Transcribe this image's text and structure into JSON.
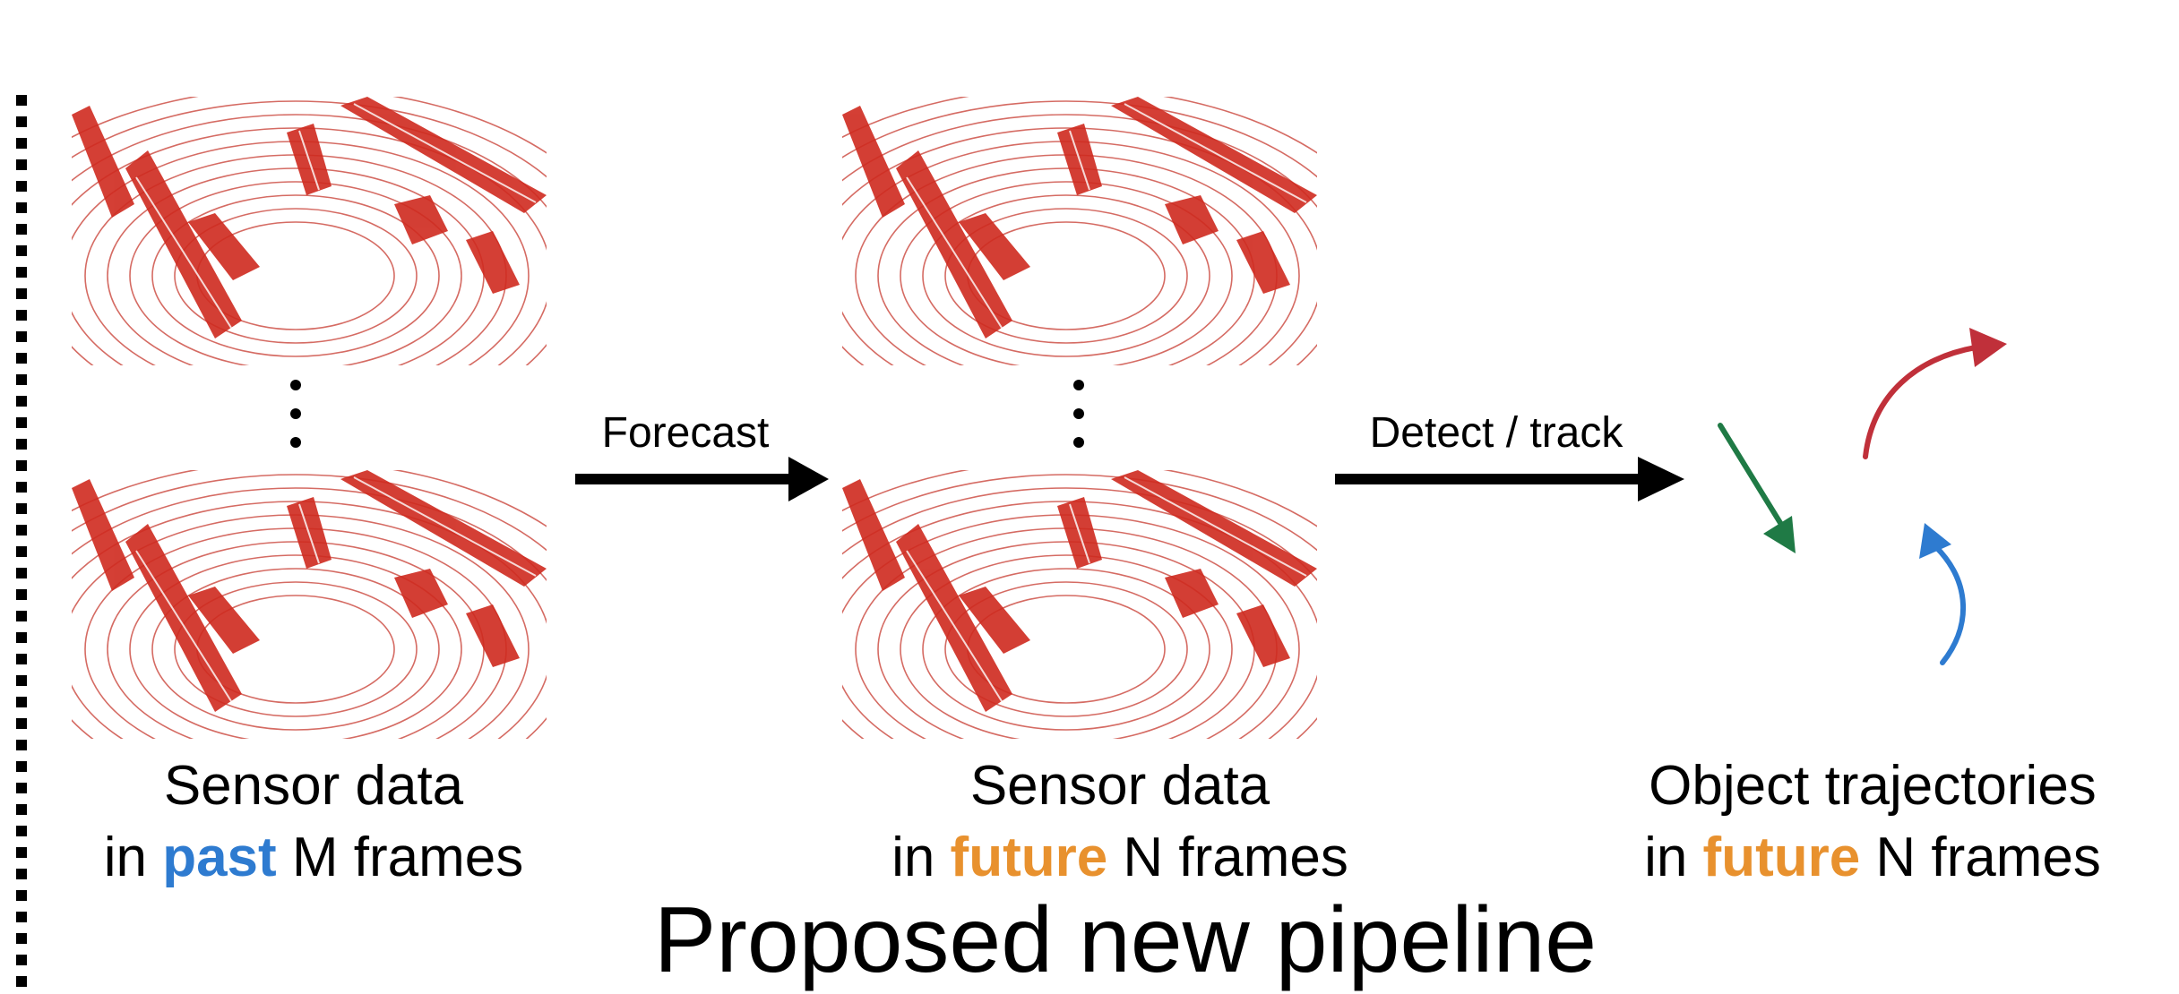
{
  "diagram": {
    "arrows": {
      "forecast": "Forecast",
      "detect_track": "Detect / track"
    },
    "blocks": {
      "past": {
        "line1": "Sensor data",
        "line2_prefix": "in ",
        "line2_highlight": "past",
        "line2_suffix": " M frames"
      },
      "future_sensor": {
        "line1": "Sensor data",
        "line2_prefix": "in ",
        "line2_highlight": "future",
        "line2_suffix": " N frames"
      },
      "trajectories": {
        "line1": "Object trajectories",
        "line2_prefix": "in ",
        "line2_highlight": "future",
        "line2_suffix": " N frames"
      }
    },
    "title": "Proposed new pipeline",
    "colors": {
      "past": "#2e7bd0",
      "future": "#e8912e",
      "lidar": "#cf2a1f",
      "traj_red": "#c0303a",
      "traj_green": "#1f7a45",
      "traj_blue": "#2e7bd0"
    }
  }
}
